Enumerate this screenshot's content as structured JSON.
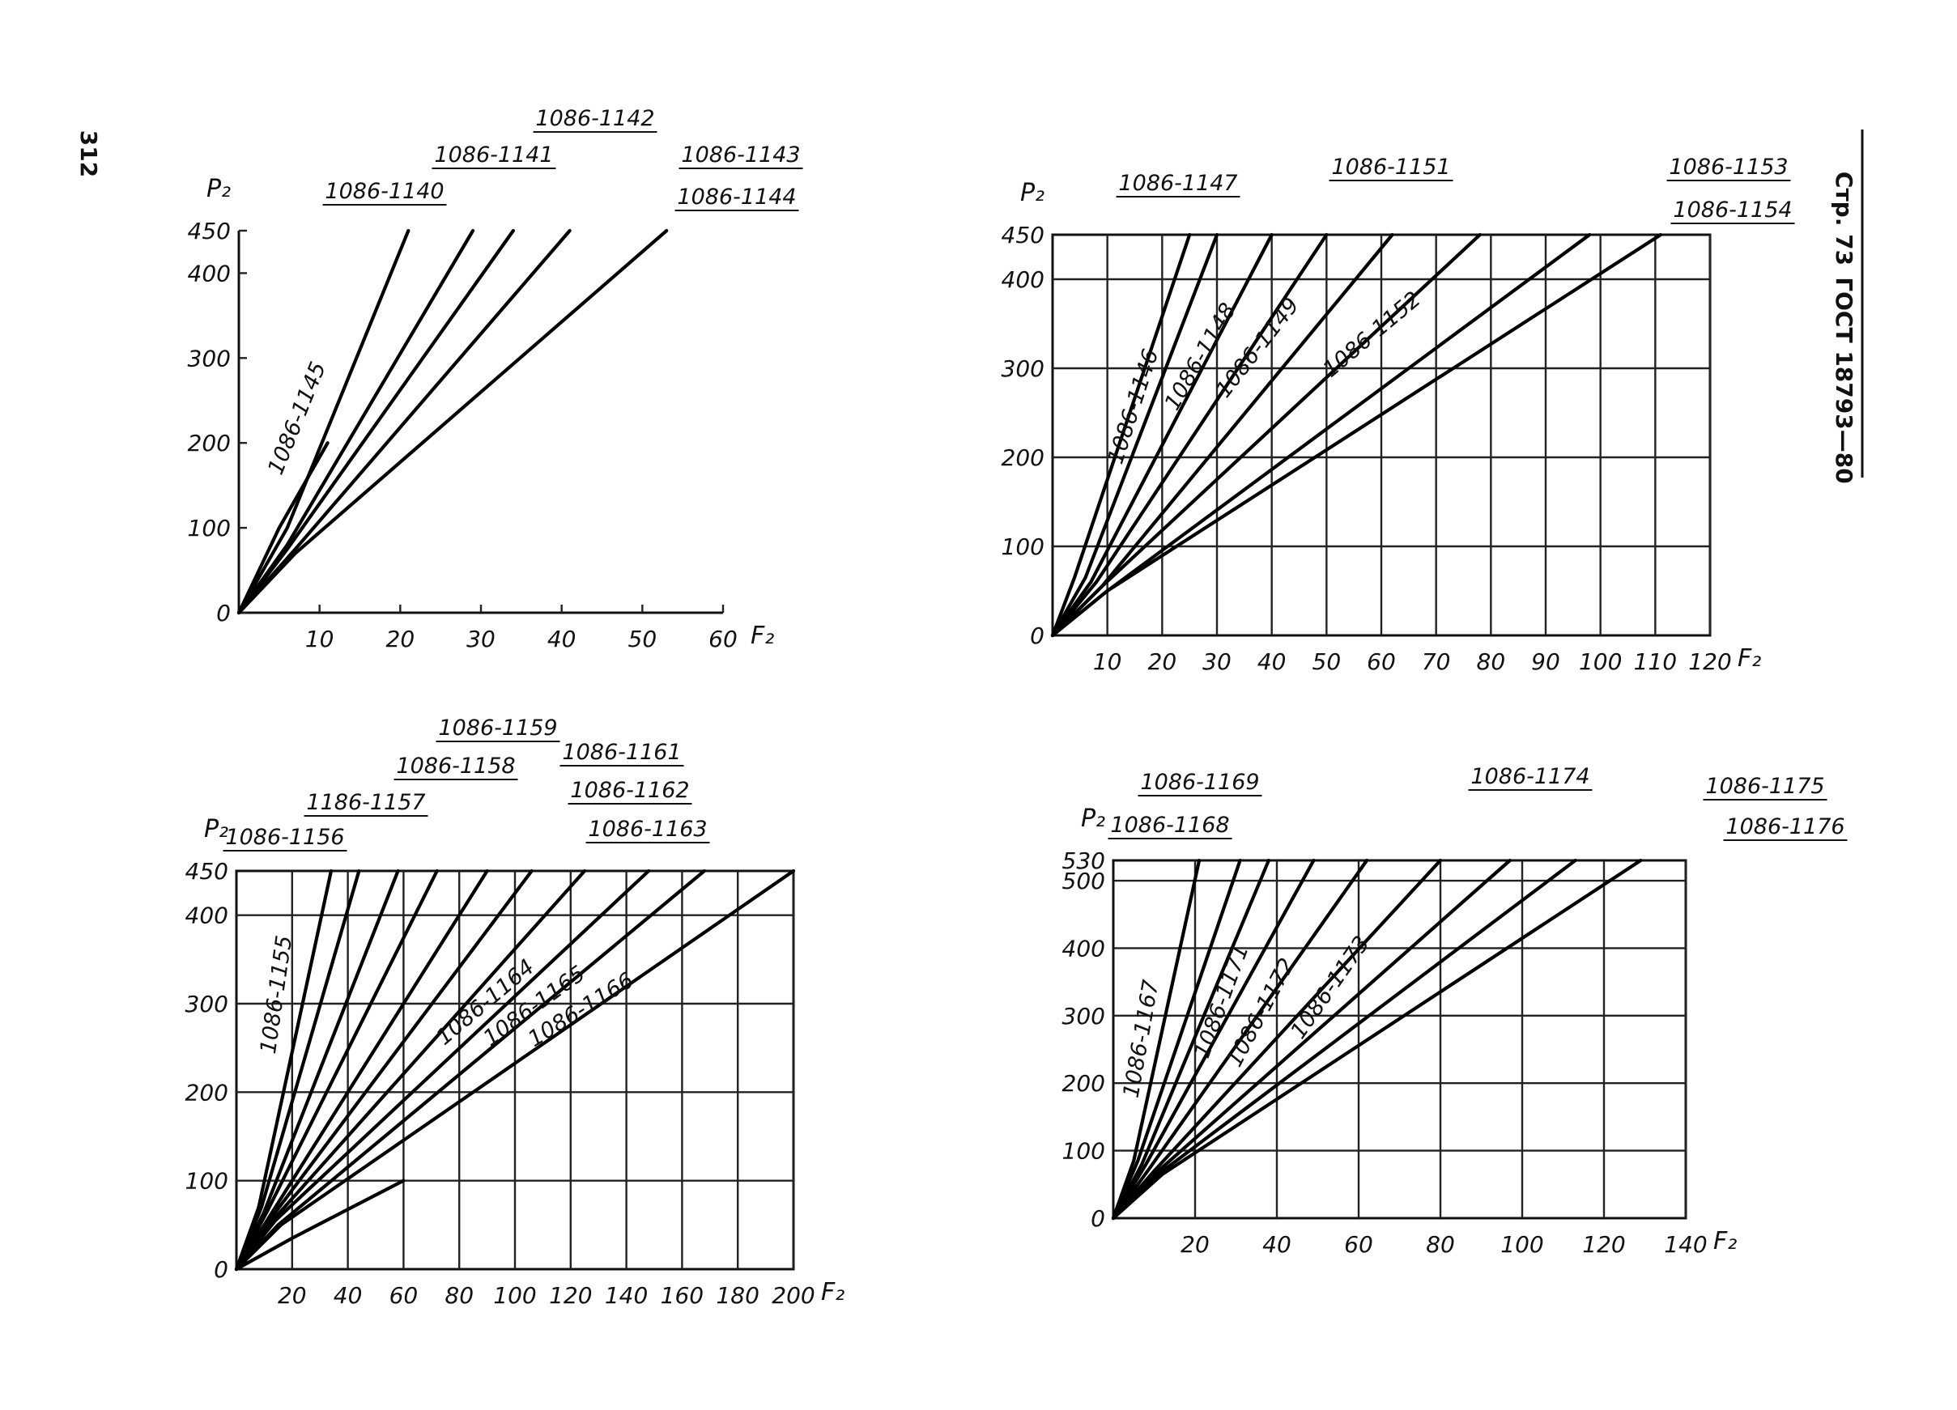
{
  "header": {
    "page_number": "312",
    "side_title_part1": "Стр. 73",
    "side_title_part2": "ГОСТ 18793—80"
  },
  "chart_data": [
    {
      "type": "line",
      "xlabel": "F₂",
      "ylabel": "P₂",
      "xlim": [
        0,
        60
      ],
      "ylim": [
        0,
        450
      ],
      "xticks": [
        "10",
        "20",
        "30",
        "40",
        "50",
        "60"
      ],
      "yticks": [
        "0",
        "100",
        "200",
        "300",
        "400",
        "450"
      ],
      "grid": false,
      "series": [
        {
          "name": "1086-1140",
          "x": [
            0,
            5,
            11
          ],
          "y": [
            0,
            100,
            200
          ]
        },
        {
          "name": "1086-1141",
          "x": [
            0,
            6,
            21
          ],
          "y": [
            0,
            100,
            450
          ]
        },
        {
          "name": "1086-1142",
          "x": [
            0,
            6,
            29
          ],
          "y": [
            0,
            80,
            450
          ]
        },
        {
          "name": "1086-1143",
          "x": [
            0,
            6,
            34
          ],
          "y": [
            0,
            75,
            450
          ]
        },
        {
          "name": "1086-1144",
          "x": [
            0,
            7,
            41
          ],
          "y": [
            0,
            75,
            450
          ]
        },
        {
          "name": "1086-1145",
          "x": [
            0,
            7,
            53
          ],
          "y": [
            0,
            70,
            450
          ]
        }
      ]
    },
    {
      "type": "line",
      "xlabel": "F₂",
      "ylabel": "P₂",
      "xlim": [
        0,
        120
      ],
      "ylim": [
        0,
        450
      ],
      "xticks": [
        "10",
        "20",
        "30",
        "40",
        "50",
        "60",
        "70",
        "80",
        "90",
        "100",
        "110",
        "120"
      ],
      "yticks": [
        "0",
        "100",
        "200",
        "300",
        "400",
        "450"
      ],
      "grid": true,
      "series": [
        {
          "name": "1086-1146",
          "x": [
            0,
            4,
            25
          ],
          "y": [
            0,
            65,
            450
          ]
        },
        {
          "name": "1086-1147",
          "x": [
            0,
            6,
            30
          ],
          "y": [
            0,
            65,
            450
          ]
        },
        {
          "name": "1086-1148",
          "x": [
            0,
            7,
            40
          ],
          "y": [
            0,
            60,
            450
          ]
        },
        {
          "name": "1086-1149",
          "x": [
            0,
            8,
            50
          ],
          "y": [
            0,
            60,
            450
          ]
        },
        {
          "name": "1086-1151",
          "x": [
            0,
            9,
            62
          ],
          "y": [
            0,
            55,
            450
          ]
        },
        {
          "name": "1086-1152",
          "x": [
            0,
            9,
            78
          ],
          "y": [
            0,
            55,
            450
          ]
        },
        {
          "name": "1086-1153",
          "x": [
            0,
            10,
            98
          ],
          "y": [
            0,
            50,
            450
          ]
        },
        {
          "name": "1086-1154",
          "x": [
            0,
            10,
            111
          ],
          "y": [
            0,
            50,
            450
          ]
        }
      ]
    },
    {
      "type": "line",
      "xlabel": "F₂",
      "ylabel": "P₂",
      "xlim": [
        0,
        200
      ],
      "ylim": [
        0,
        450
      ],
      "xticks": [
        "20",
        "40",
        "60",
        "80",
        "100",
        "120",
        "140",
        "160",
        "180",
        "200"
      ],
      "yticks": [
        "0",
        "100",
        "200",
        "300",
        "400",
        "450"
      ],
      "grid": true,
      "series": [
        {
          "name": "1086-1155",
          "x": [
            0,
            8,
            34
          ],
          "y": [
            0,
            70,
            450
          ]
        },
        {
          "name": "1086-1156",
          "x": [
            0,
            9,
            44
          ],
          "y": [
            0,
            70,
            450
          ]
        },
        {
          "name": "1186-1157",
          "x": [
            0,
            10,
            58
          ],
          "y": [
            0,
            65,
            450
          ]
        },
        {
          "name": "1086-1158",
          "x": [
            0,
            11,
            72
          ],
          "y": [
            0,
            65,
            450
          ]
        },
        {
          "name": "1086-1159",
          "x": [
            0,
            12,
            90
          ],
          "y": [
            0,
            60,
            450
          ]
        },
        {
          "name": "1086-1161",
          "x": [
            0,
            13,
            106
          ],
          "y": [
            0,
            60,
            450
          ]
        },
        {
          "name": "1086-1162",
          "x": [
            0,
            13,
            125
          ],
          "y": [
            0,
            55,
            450
          ]
        },
        {
          "name": "1086-1163",
          "x": [
            0,
            14,
            148
          ],
          "y": [
            0,
            55,
            450
          ]
        },
        {
          "name": "1086-1164",
          "x": [
            0,
            15,
            168
          ],
          "y": [
            0,
            50,
            450
          ]
        },
        {
          "name": "1086-1165",
          "x": [
            0,
            16,
            200
          ],
          "y": [
            0,
            50,
            450
          ]
        },
        {
          "name": "1086-1166",
          "x": [
            0,
            20,
            60
          ],
          "y": [
            0,
            35,
            100
          ]
        }
      ]
    },
    {
      "type": "line",
      "xlabel": "F₂",
      "ylabel": "P₂",
      "xlim": [
        0,
        140
      ],
      "ylim": [
        0,
        530
      ],
      "xticks": [
        "20",
        "40",
        "60",
        "80",
        "100",
        "120",
        "140"
      ],
      "yticks": [
        "0",
        "100",
        "200",
        "300",
        "400",
        "500",
        "530"
      ],
      "grid": true,
      "series": [
        {
          "name": "1086-1167",
          "x": [
            0,
            5,
            21
          ],
          "y": [
            0,
            85,
            530
          ]
        },
        {
          "name": "1086-1168",
          "x": [
            0,
            6,
            31
          ],
          "y": [
            0,
            85,
            530
          ]
        },
        {
          "name": "1086-1169",
          "x": [
            0,
            7,
            38
          ],
          "y": [
            0,
            80,
            530
          ]
        },
        {
          "name": "1086-1171",
          "x": [
            0,
            8,
            49
          ],
          "y": [
            0,
            80,
            530
          ]
        },
        {
          "name": "1086-1172",
          "x": [
            0,
            9,
            62
          ],
          "y": [
            0,
            75,
            530
          ]
        },
        {
          "name": "1086-1173",
          "x": [
            0,
            10,
            80
          ],
          "y": [
            0,
            70,
            530
          ]
        },
        {
          "name": "1086-1174",
          "x": [
            0,
            11,
            97
          ],
          "y": [
            0,
            70,
            530
          ]
        },
        {
          "name": "1086-1175",
          "x": [
            0,
            11,
            113
          ],
          "y": [
            0,
            65,
            530
          ]
        },
        {
          "name": "1086-1176",
          "x": [
            0,
            12,
            129
          ],
          "y": [
            0,
            65,
            530
          ]
        }
      ]
    }
  ]
}
